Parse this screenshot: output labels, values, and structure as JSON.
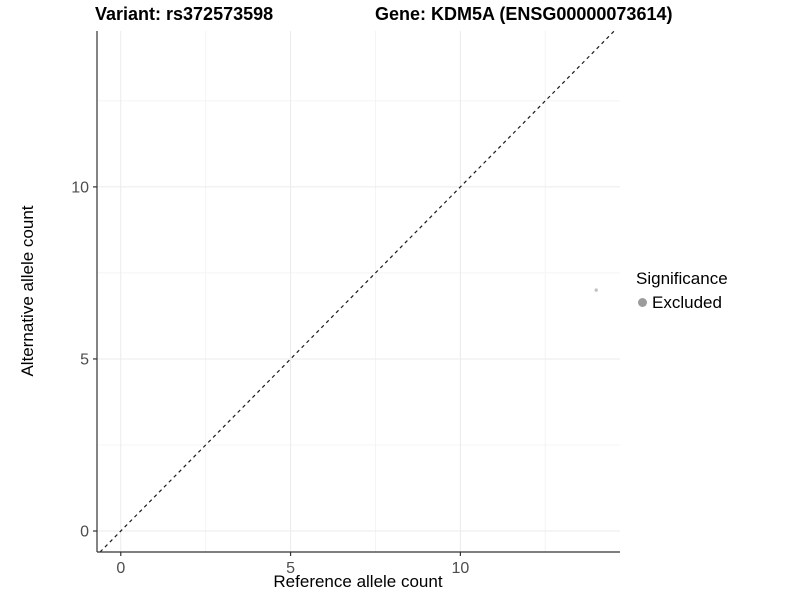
{
  "chart_data": {
    "type": "scatter",
    "title_left": "Variant: rs372573598",
    "title_right": "Gene: KDM5A (ENSG00000073614)",
    "xlabel": "Reference allele count",
    "ylabel": "Alternative allele count",
    "xlim": [
      -0.7,
      14.7
    ],
    "ylim": [
      -0.61,
      14.53
    ],
    "x_ticks": [
      0,
      5,
      10
    ],
    "y_ticks": [
      0,
      5,
      10
    ],
    "x_minor_gridlines": [
      2.5,
      7.5,
      12.5
    ],
    "y_minor_gridlines": [
      2.5,
      7.5,
      12.5
    ],
    "grid": true,
    "points": [
      {
        "x": 14,
        "y": 7,
        "significance": "Excluded",
        "color": "#c2c2c2",
        "radius": 1.7
      }
    ],
    "identity_line": {
      "style": "dashed",
      "slope": 1,
      "intercept": 0,
      "color": "#1a1a1a"
    },
    "legend": {
      "position": "right",
      "title": "Significance",
      "items": [
        {
          "label": "Excluded",
          "color": "#9c9c9c"
        }
      ]
    }
  }
}
